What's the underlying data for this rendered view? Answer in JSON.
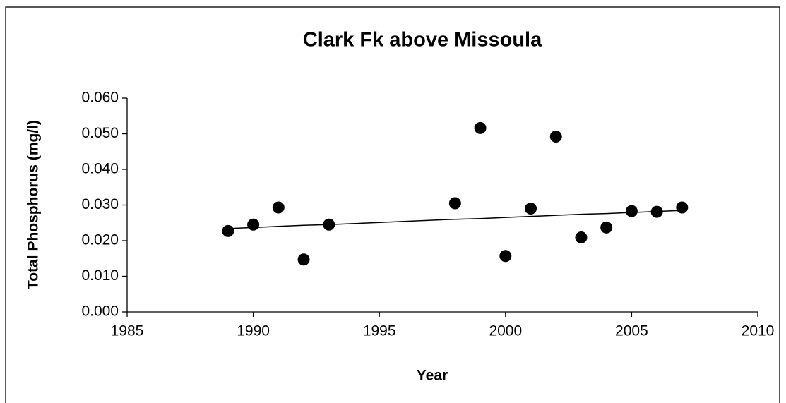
{
  "chart_data": {
    "type": "scatter",
    "title": "Clark Fk above Missoula",
    "x_label": "Year",
    "y_label": "Total Phosphorus (mg/l)",
    "x": [
      1989,
      1990,
      1991,
      1992,
      1993,
      1998,
      1999,
      2000,
      2001,
      2002,
      2003,
      2004,
      2005,
      2006,
      2007
    ],
    "series": [
      {
        "type": "scatter",
        "color": "#000000",
        "values": [
          0.0227,
          0.0245,
          0.0293,
          0.0147,
          0.0245,
          0.0305,
          0.0516,
          0.0157,
          0.029,
          0.0492,
          0.0209,
          0.0237,
          0.0283,
          0.0281,
          0.0293
        ]
      },
      {
        "type": "line",
        "color": "#000000",
        "values": [
          0.0234,
          0.0237,
          0.024,
          0.0243,
          0.0245,
          0.026,
          0.0262,
          0.0265,
          0.0268,
          0.0271,
          0.0274,
          0.0276,
          0.0279,
          0.0282,
          0.0285
        ]
      }
    ],
    "xlim": [
      1985,
      2010
    ],
    "xticks": [
      1985,
      1990,
      1995,
      2000,
      2005,
      2010
    ],
    "ylim": [
      0,
      0.06
    ],
    "yticks": [
      {
        "value": 0,
        "label": "0.000"
      },
      {
        "value": 0.01,
        "label": "0.010"
      },
      {
        "value": 0.02,
        "label": "0.020"
      },
      {
        "value": 0.03,
        "label": "0.030"
      },
      {
        "value": 0.04,
        "label": "0.040"
      },
      {
        "value": 0.05,
        "label": "0.050"
      },
      {
        "value": 0.06,
        "label": "0.060"
      }
    ],
    "grid": false
  }
}
